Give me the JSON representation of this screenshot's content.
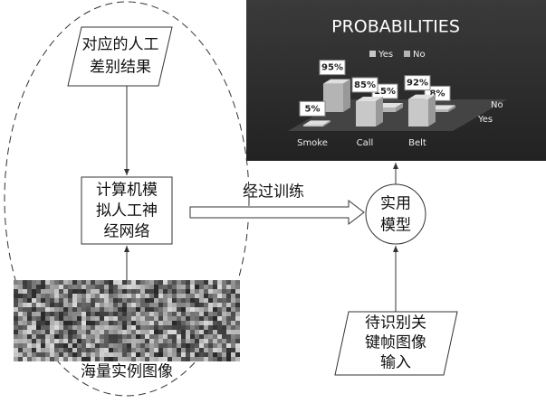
{
  "nodes": [
    {
      "id": "result",
      "label": [
        "对应的人工",
        "差别结果"
      ]
    },
    {
      "id": "ann",
      "label": [
        "计算机模",
        "拟人工神",
        "经网络"
      ]
    },
    {
      "id": "images",
      "label": [
        "海量实例图像"
      ]
    },
    {
      "id": "model",
      "label": [
        "实用",
        "模型"
      ]
    },
    {
      "id": "input",
      "label": [
        "待识别关",
        "键帧图像",
        "输入"
      ]
    }
  ],
  "edges": [
    {
      "from": "ann",
      "to": "model",
      "label": "经过训练"
    }
  ],
  "chart_data": {
    "type": "bar",
    "title": "PROBABILITIES",
    "categories": [
      "Smoke",
      "Call",
      "Belt"
    ],
    "series": [
      {
        "name": "Yes",
        "color": "#c8c8c8",
        "values": [
          5,
          85,
          92
        ],
        "value_labels": [
          "5%",
          "85%",
          "92%"
        ]
      },
      {
        "name": "No",
        "color": "#b4b4b4",
        "values": [
          95,
          15,
          8
        ],
        "value_labels": [
          "95%",
          "15%",
          "8%"
        ]
      }
    ]
  }
}
